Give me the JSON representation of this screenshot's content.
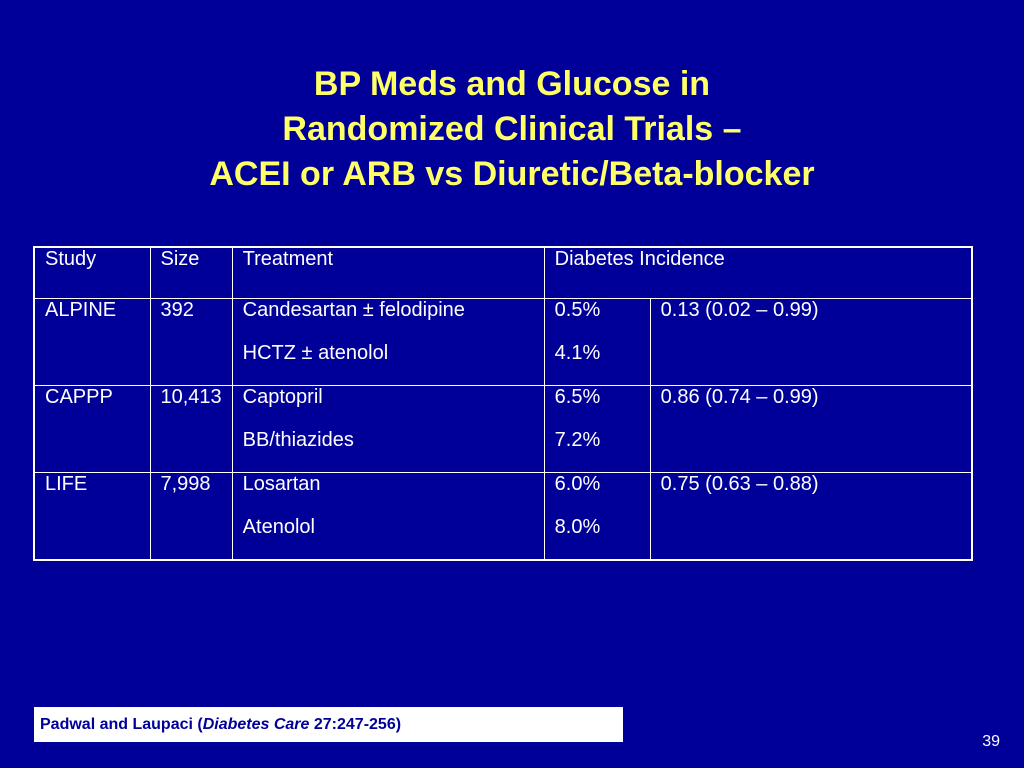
{
  "title": {
    "line1": "BP Meds and Glucose in",
    "line2": "Randomized Clinical Trials –",
    "line3": "ACEI or ARB vs Diuretic/Beta-blocker"
  },
  "table": {
    "headers": [
      "Study",
      "Size",
      "Treatment",
      "Diabetes Incidence"
    ],
    "rows": [
      {
        "study": "ALPINE",
        "size": "392",
        "treatments": [
          "Candesartan ± felodipine",
          "HCTZ ± atenolol"
        ],
        "incidence": [
          "0.5%",
          "4.1%"
        ],
        "ratio": "0.13 (0.02 – 0.99)"
      },
      {
        "study": "CAPPP",
        "size": "10,413",
        "treatments": [
          "Captopril",
          "BB/thiazides"
        ],
        "incidence": [
          "6.5%",
          "7.2%"
        ],
        "ratio": "0.86 (0.74 – 0.99)"
      },
      {
        "study": "LIFE",
        "size": "7,998",
        "treatments": [
          "Losartan",
          "Atenolol"
        ],
        "incidence": [
          "6.0%",
          "8.0%"
        ],
        "ratio": "0.75 (0.63 – 0.88)"
      }
    ]
  },
  "citation": {
    "prefix": "Padwal and Laupaci (",
    "journal": "Diabetes Care",
    "suffix": " 27:247-256)"
  },
  "page_number": "39",
  "colors": {
    "background": "#000099",
    "title": "#ffff66",
    "text": "#ffffff"
  }
}
